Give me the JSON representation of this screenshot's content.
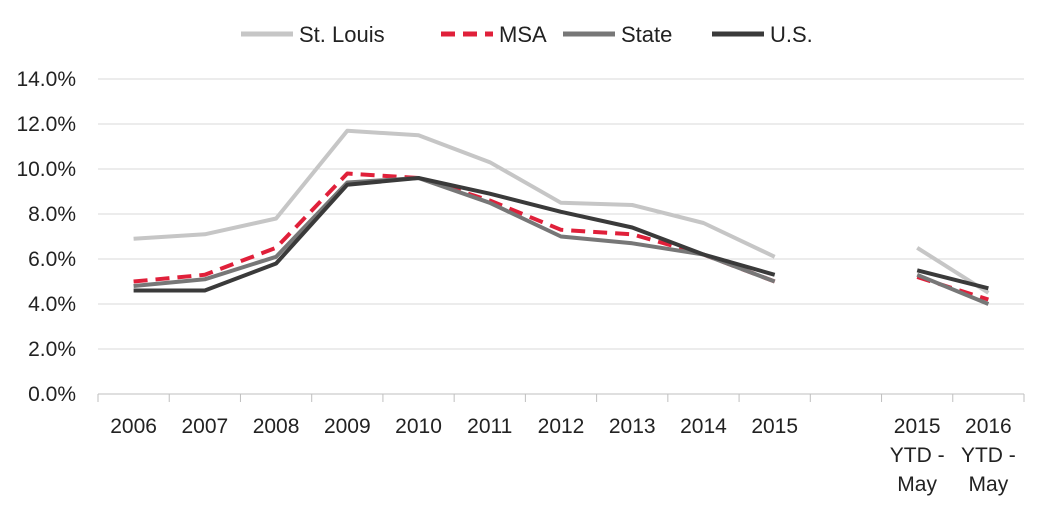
{
  "chart_data": {
    "type": "line",
    "categories": [
      "2006",
      "2007",
      "2008",
      "2009",
      "2010",
      "2011",
      "2012",
      "2013",
      "2014",
      "2015",
      "",
      "2015 YTD - May",
      "2016 YTD - May"
    ],
    "ylim": [
      0,
      14
    ],
    "yticks": [
      "0.0%",
      "2.0%",
      "4.0%",
      "6.0%",
      "8.0%",
      "10.0%",
      "12.0%",
      "14.0%"
    ],
    "grid": true,
    "legend_position": "top",
    "series": [
      {
        "name": "St. Louis",
        "color": "#c6c6c6",
        "dash": false,
        "values": [
          6.9,
          7.1,
          7.8,
          11.7,
          11.5,
          10.3,
          8.5,
          8.4,
          7.6,
          6.1,
          null,
          6.5,
          4.5
        ]
      },
      {
        "name": "MSA",
        "color": "#e0203a",
        "dash": true,
        "values": [
          5.0,
          5.3,
          6.5,
          9.8,
          9.6,
          8.6,
          7.3,
          7.1,
          6.2,
          5.0,
          null,
          5.2,
          4.2
        ]
      },
      {
        "name": "State",
        "color": "#777777",
        "dash": false,
        "values": [
          4.8,
          5.1,
          6.1,
          9.4,
          9.6,
          8.5,
          7.0,
          6.7,
          6.2,
          5.0,
          null,
          5.3,
          4.0
        ]
      },
      {
        "name": "U.S.",
        "color": "#3a3a3a",
        "dash": false,
        "values": [
          4.6,
          4.6,
          5.8,
          9.3,
          9.6,
          8.9,
          8.1,
          7.4,
          6.2,
          5.3,
          null,
          5.5,
          4.7
        ]
      }
    ]
  }
}
